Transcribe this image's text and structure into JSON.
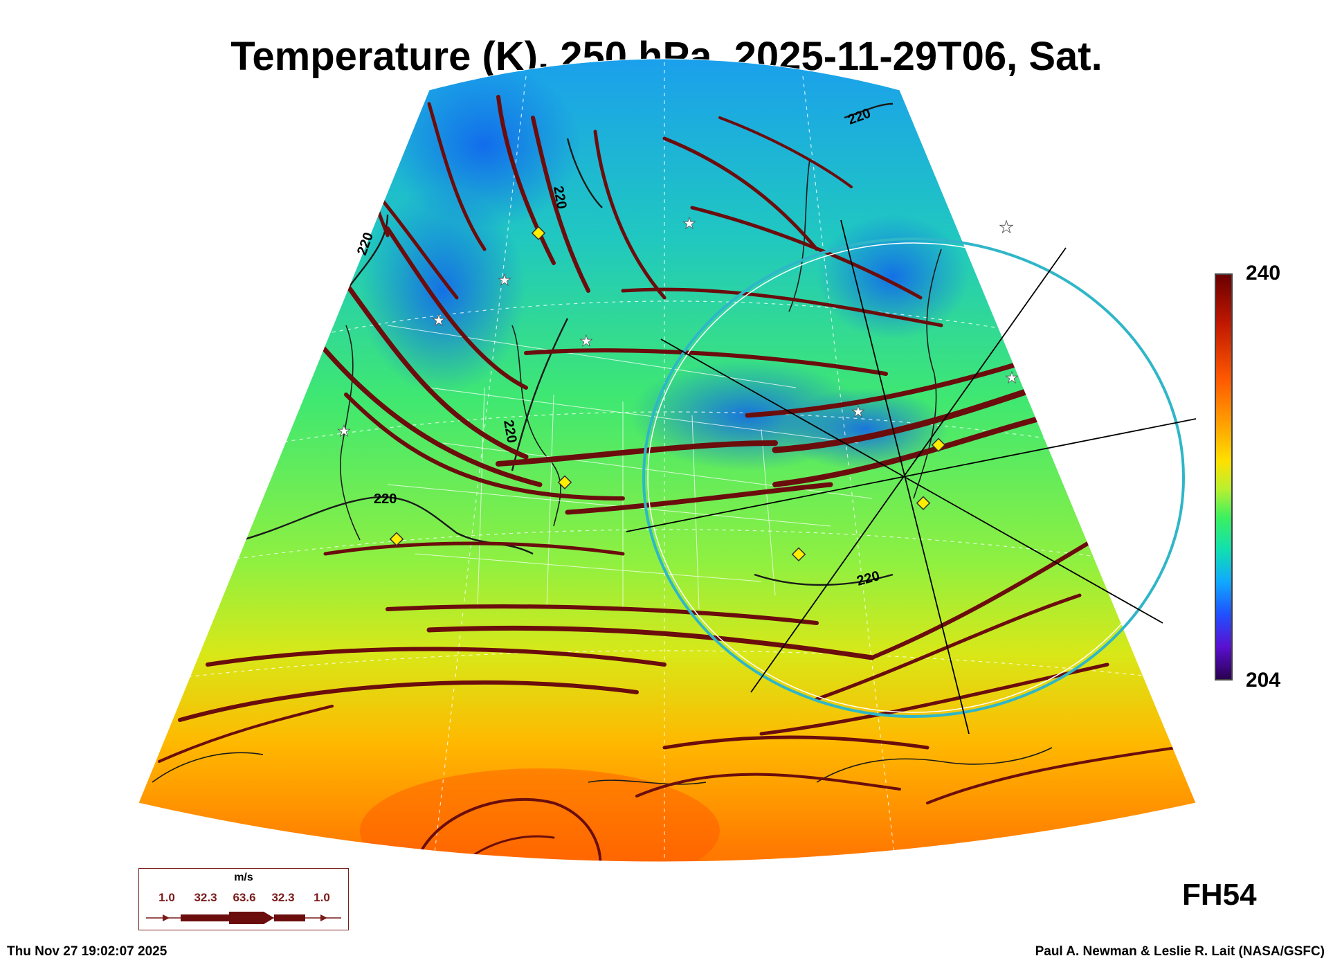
{
  "title": "Temperature (K), 250 hPa, 2025-11-29T06, Sat.",
  "colorbar": {
    "max_label": "240",
    "min_label": "204"
  },
  "contour_labels": [
    "220",
    "220",
    "220",
    "220",
    "220",
    "220"
  ],
  "forecast_hour": "FH54",
  "wind_legend": {
    "units": "m/s",
    "values": [
      "1.0",
      "32.3",
      "63.6",
      "32.3",
      "1.0"
    ]
  },
  "footer": {
    "timestamp": "Thu Nov 27 19:02:07 2025",
    "credit": "Paul A. Newman & Leslie R. Lait (NASA/GSFC)"
  },
  "colors": {
    "streamline": "#6b0d0d",
    "contour": "#1a1a1a",
    "circle": "#2fb6c8",
    "marker_diamond": "#ffee00"
  }
}
